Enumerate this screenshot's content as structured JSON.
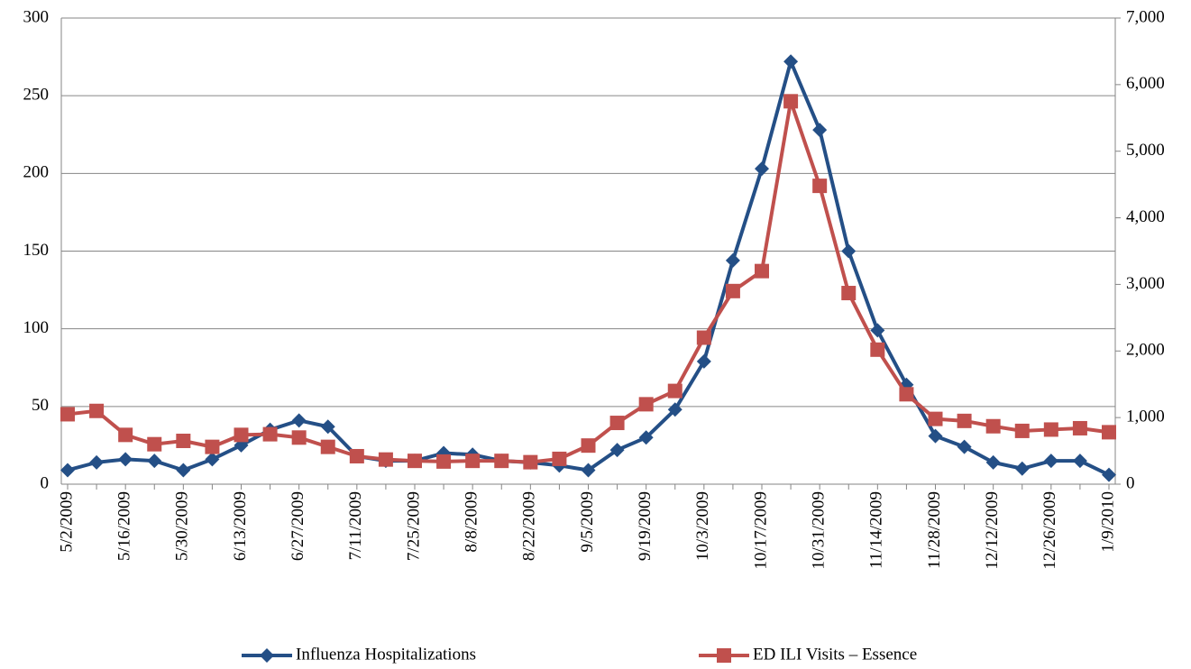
{
  "chart_data": {
    "type": "line",
    "categories": [
      "5/2/2009",
      null,
      "5/16/2009",
      null,
      "5/30/2009",
      null,
      "6/13/2009",
      null,
      "6/27/2009",
      null,
      "7/11/2009",
      null,
      "7/25/2009",
      null,
      "8/8/2009",
      null,
      "8/22/2009",
      null,
      "9/5/2009",
      null,
      "9/19/2009",
      null,
      "10/3/2009",
      null,
      "10/17/2009",
      null,
      "10/31/2009",
      null,
      "11/14/2009",
      null,
      "11/28/2009",
      null,
      "12/12/2009",
      null,
      "12/26/2009",
      null,
      "1/9/2010"
    ],
    "series": [
      {
        "name": "Influenza Hospitalizations",
        "color": "#244f86",
        "marker": "diamond",
        "values": [
          9,
          14,
          16,
          15,
          9,
          16,
          25,
          35,
          41,
          37,
          18,
          15,
          15,
          20,
          19,
          15,
          14,
          12,
          9,
          22,
          30,
          48,
          79,
          144,
          203,
          272,
          228,
          150,
          99,
          64,
          31,
          24,
          14,
          10,
          15,
          15,
          6
        ]
      },
      {
        "name": "ED ILI Visits – Essence",
        "color": "#c0504d",
        "marker": "square",
        "axis": "y2",
        "values": [
          1050,
          1100,
          740,
          600,
          650,
          560,
          740,
          750,
          700,
          560,
          420,
          370,
          350,
          340,
          350,
          350,
          330,
          380,
          580,
          920,
          1200,
          1400,
          2200,
          2900,
          3200,
          5750,
          4480,
          2870,
          2020,
          1350,
          980,
          950,
          870,
          800,
          820,
          840,
          780
        ]
      }
    ],
    "ylim": [
      0,
      300
    ],
    "yticks": [
      0,
      50,
      100,
      150,
      200,
      250,
      300
    ],
    "y2lim": [
      0,
      7000
    ],
    "y2ticks": [
      0,
      {
        "value": 1000,
        "label": "1,000"
      },
      {
        "value": 2000,
        "label": "2,000"
      },
      {
        "value": 3000,
        "label": "3,000"
      },
      {
        "value": 4000,
        "label": "4,000"
      },
      {
        "value": 5000,
        "label": "5,000"
      },
      {
        "value": 6000,
        "label": "6,000"
      },
      {
        "value": 7000,
        "label": "7,000"
      }
    ],
    "grid": true,
    "legend": "bottom"
  }
}
